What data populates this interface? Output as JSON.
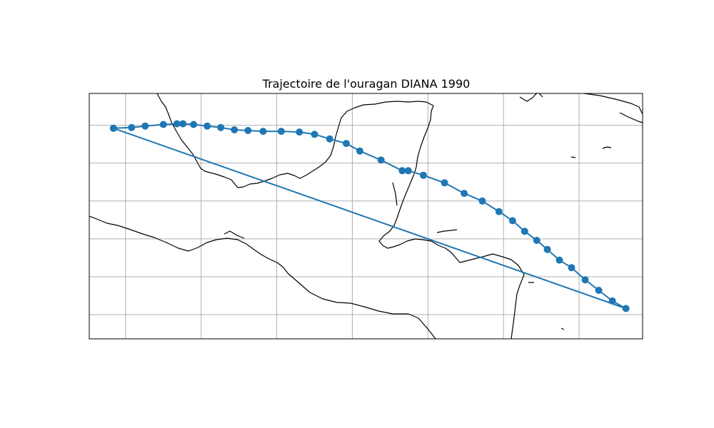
{
  "title": "Trajectoire de l'ouragan DIANA 1990",
  "colors": {
    "track": "#1f77b4",
    "coast": "#000000",
    "grid": "#b0b0b0"
  },
  "chart_data": {
    "type": "line",
    "title": "Trajectoire de l'ouragan DIANA 1990",
    "xlabel": "",
    "ylabel": "",
    "grid": true,
    "xlim": [
      -100.4,
      -63.8
    ],
    "ylim": [
      9.9,
      26.1
    ],
    "x_gridlines": [
      -98,
      -93,
      -88,
      -83,
      -78,
      -73,
      -68
    ],
    "y_gridlines": [
      24,
      21.5,
      19,
      16.5,
      14,
      11.5
    ],
    "series": [
      {
        "marker": "circle",
        "x": [
          -98.8,
          -97.6,
          -96.7,
          -95.5,
          -94.6,
          -94.2,
          -93.5,
          -92.6,
          -91.7,
          -90.8,
          -89.9,
          -88.9,
          -87.7,
          -86.5,
          -85.5,
          -84.5,
          -83.4,
          -82.5,
          -81.1,
          -79.7,
          -79.3,
          -78.3,
          -76.9,
          -75.6,
          -74.4,
          -73.3,
          -72.4,
          -71.6,
          -70.8,
          -70.1,
          -69.3,
          -68.5,
          -67.6,
          -66.7,
          -65.8,
          -64.9,
          -98.8
        ],
        "y": [
          23.8,
          23.85,
          23.95,
          24.05,
          24.1,
          24.1,
          24.05,
          23.95,
          23.85,
          23.7,
          23.65,
          23.6,
          23.6,
          23.55,
          23.4,
          23.1,
          22.8,
          22.3,
          21.7,
          21.0,
          21.0,
          20.7,
          20.2,
          19.5,
          19.0,
          18.3,
          17.7,
          17.0,
          16.4,
          15.8,
          15.1,
          14.6,
          13.8,
          13.1,
          12.4,
          11.9,
          23.8
        ]
      }
    ]
  }
}
